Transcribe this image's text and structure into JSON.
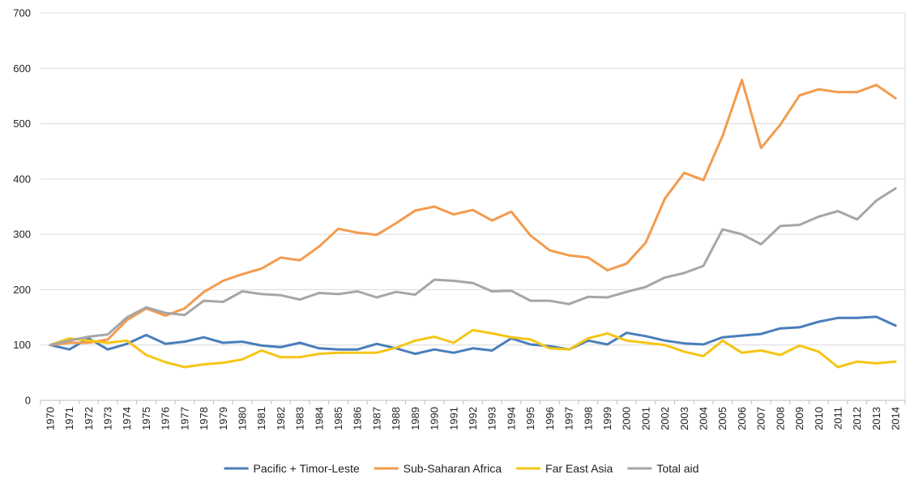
{
  "chart_data": {
    "type": "line",
    "title": "",
    "xlabel": "",
    "ylabel": "",
    "ylim": [
      0,
      700
    ],
    "yticks": [
      "0",
      "100",
      "200",
      "300",
      "400",
      "500",
      "600",
      "700"
    ],
    "grid": true,
    "legend_position": "bottom",
    "categories": [
      "1970",
      "1971",
      "1972",
      "1973",
      "1974",
      "1975",
      "1976",
      "1977",
      "1978",
      "1979",
      "1980",
      "1981",
      "1982",
      "1983",
      "1984",
      "1985",
      "1986",
      "1987",
      "1988",
      "1989",
      "1990",
      "1991",
      "1992",
      "1993",
      "1994",
      "1995",
      "1996",
      "1997",
      "1998",
      "1999",
      "2000",
      "2001",
      "2002",
      "2003",
      "2004",
      "2005",
      "2006",
      "2007",
      "2008",
      "2009",
      "2010",
      "2011",
      "2012",
      "2013",
      "2014"
    ],
    "series": [
      {
        "name": "Pacific + Timor-Leste",
        "color": "#4a7ebb",
        "values": [
          100,
          92,
          112,
          92,
          102,
          118,
          102,
          106,
          114,
          104,
          106,
          99,
          96,
          104,
          94,
          92,
          92,
          102,
          94,
          84,
          92,
          86,
          94,
          90,
          112,
          101,
          98,
          92,
          108,
          101,
          122,
          116,
          108,
          103,
          101,
          114,
          117,
          120,
          130,
          132,
          142,
          149,
          149,
          151,
          135
        ]
      },
      {
        "name": "Sub-Saharan Africa",
        "color": "#f39b4d",
        "values": [
          100,
          104,
          104,
          110,
          145,
          166,
          153,
          166,
          196,
          216,
          228,
          238,
          258,
          253,
          278,
          310,
          303,
          299,
          320,
          343,
          350,
          336,
          344,
          325,
          341,
          298,
          271,
          262,
          258,
          235,
          247,
          285,
          365,
          411,
          398,
          478,
          579,
          456,
          498,
          551,
          562,
          557,
          557,
          570,
          546
        ]
      },
      {
        "name": "Far East Asia",
        "color": "#f5c516",
        "values": [
          100,
          112,
          108,
          104,
          108,
          82,
          69,
          60,
          65,
          68,
          74,
          90,
          78,
          78,
          84,
          86,
          86,
          86,
          95,
          108,
          115,
          104,
          127,
          121,
          114,
          110,
          94,
          92,
          112,
          121,
          108,
          104,
          100,
          88,
          80,
          108,
          86,
          90,
          82,
          99,
          88,
          60,
          70,
          67,
          70
        ]
      },
      {
        "name": "Total aid",
        "color": "#a6a6a6",
        "values": [
          100,
          108,
          115,
          119,
          150,
          168,
          158,
          154,
          180,
          178,
          197,
          192,
          190,
          182,
          194,
          192,
          197,
          186,
          196,
          191,
          218,
          216,
          212,
          197,
          198,
          180,
          180,
          174,
          187,
          186,
          196,
          205,
          222,
          230,
          243,
          309,
          300,
          282,
          315,
          317,
          332,
          342,
          327,
          361,
          383
        ]
      }
    ]
  }
}
